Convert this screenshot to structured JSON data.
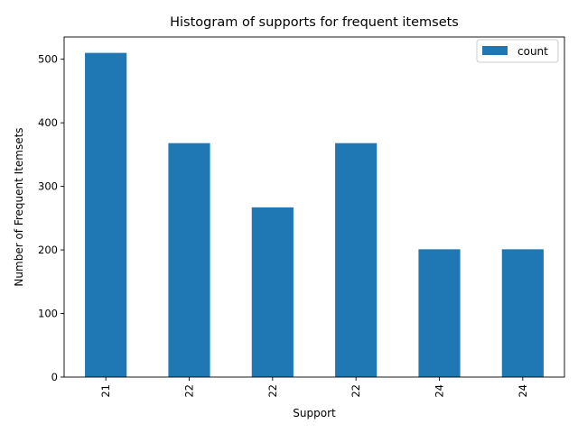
{
  "chart_data": {
    "type": "bar",
    "title": "Histogram of supports for frequent itemsets",
    "xlabel": "Support",
    "ylabel": "Number of Frequent Itemsets",
    "categories": [
      "21",
      "22",
      "22",
      "22",
      "24",
      "24"
    ],
    "series": [
      {
        "name": "count",
        "values": [
          510,
          368,
          267,
          368,
          201,
          201
        ],
        "color": "#1f77b4"
      }
    ],
    "ylim": [
      0,
      535
    ],
    "yticks": [
      0,
      100,
      200,
      300,
      400,
      500
    ],
    "grid": false,
    "legend_position": "top-right"
  }
}
